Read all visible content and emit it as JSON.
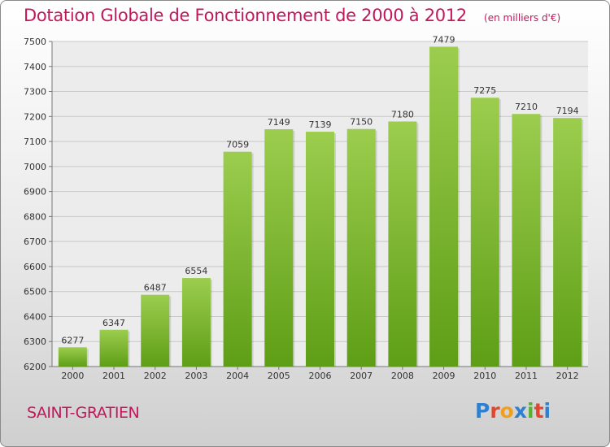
{
  "chart_data": {
    "type": "bar",
    "title": "Dotation Globale de Fonctionnement de 2000 à 2012",
    "subtitle": "(en milliers d'€)",
    "categories": [
      "2000",
      "2001",
      "2002",
      "2003",
      "2004",
      "2005",
      "2006",
      "2007",
      "2008",
      "2009",
      "2010",
      "2011",
      "2012"
    ],
    "values": [
      6277,
      6347,
      6487,
      6554,
      7059,
      7149,
      7139,
      7150,
      7180,
      7479,
      7275,
      7210,
      7194
    ],
    "ylim": [
      6200,
      7500
    ],
    "yticks": [
      6200,
      6300,
      6400,
      6500,
      6600,
      6700,
      6800,
      6900,
      7000,
      7100,
      7200,
      7300,
      7400,
      7500
    ],
    "grid": true,
    "legend": "none",
    "bar_color": "#86c234"
  },
  "place": "SAINT-GRATIEN",
  "logo": {
    "text": "Proxiti",
    "letter_colors": [
      "#2f7fd0",
      "#e2462d",
      "#f0a020",
      "#2f7fd0",
      "#58b030",
      "#e2462d",
      "#2f7fd0"
    ]
  }
}
